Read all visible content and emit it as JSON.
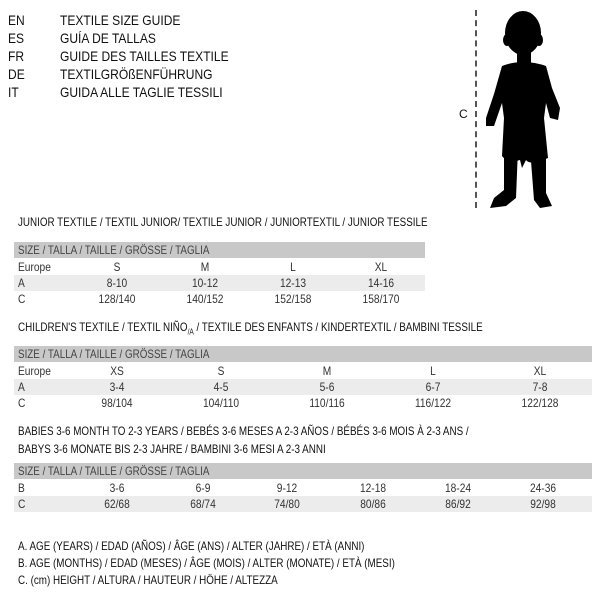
{
  "languages": [
    {
      "code": "EN",
      "text": "TEXTILE SIZE GUIDE"
    },
    {
      "code": "ES",
      "text": "GUÍA DE TALLAS"
    },
    {
      "code": "FR",
      "text": "GUIDE DES TAILLES TEXTILE"
    },
    {
      "code": "DE",
      "text": "TEXTILGRÖßENFÜHRUNG"
    },
    {
      "code": "IT",
      "text": "GUIDA ALLE TAGLIE TESSILI"
    }
  ],
  "figure": {
    "measure_label": "C",
    "icon": "child-silhouette-icon"
  },
  "junior": {
    "title": "JUNIOR TEXTILE / TEXTIL JUNIOR/ TEXTILE JUNIOR / JUNIORTEXTIL / JUNIOR TESSILE",
    "header": "SIZE / TALLA / TAILLE / GRÖSSE / TAGLIA",
    "rows": [
      {
        "label": "Europe",
        "cells": [
          "S",
          "M",
          "L",
          "XL"
        ]
      },
      {
        "label": "A",
        "cells": [
          "8-10",
          "10-12",
          "12-13",
          "14-16"
        ]
      },
      {
        "label": "C",
        "cells": [
          "128/140",
          "140/152",
          "152/158",
          "158/170"
        ]
      }
    ]
  },
  "children": {
    "title_main": "CHILDREN'S TEXTILE / TEXTIL NIÑO",
    "title_sub": "/A",
    "title_rest": " / TEXTILE DES ENFANTS / KINDERTEXTIL / BAMBINI TESSILE",
    "header": "SIZE / TALLA / TAILLE / GRÖSSE / TAGLIA",
    "rows": [
      {
        "label": "Europe",
        "cells": [
          "XS",
          "S",
          "M",
          "L",
          "XL"
        ]
      },
      {
        "label": "A",
        "cells": [
          "3-4",
          "4-5",
          "5-6",
          "6-7",
          "7-8"
        ]
      },
      {
        "label": "C",
        "cells": [
          "98/104",
          "104/110",
          "110/116",
          "116/122",
          "122/128"
        ]
      }
    ]
  },
  "babies": {
    "title_line1": "BABIES 3-6 MONTH TO 2-3 YEARS / BEBÉS 3-6 MESES A 2-3 AÑOS / BÉBÉS 3-6 MOIS À 2-3 ANS /",
    "title_line2": "BABYS 3-6 MONATE BIS 2-3 JAHRE / BAMBINI 3-6 MESI A 2-3 ANNI",
    "header": "SIZE / TALLA / TAILLE / GRÖSSE / TAGLIA",
    "rows": [
      {
        "label": "B",
        "cells": [
          "3-6",
          "6-9",
          "9-12",
          "12-18",
          "18-24",
          "24-36"
        ]
      },
      {
        "label": "C",
        "cells": [
          "62/68",
          "68/74",
          "74/80",
          "80/86",
          "86/92",
          "92/98"
        ]
      }
    ]
  },
  "legend": [
    "A. AGE (YEARS) / EDAD (AÑOS) / ÂGE (ANS) / ALTER (JAHRE) / ETÀ (ANNI)",
    "B. AGE (MONTHS) / EDAD (MESES) / ÂGE (MOIS) / ALTER (MONATE) / ETÀ (MESI)",
    "C. (cm) HEIGHT / ALTURA / HAUTEUR / HÖHE / ALTEZZA"
  ]
}
